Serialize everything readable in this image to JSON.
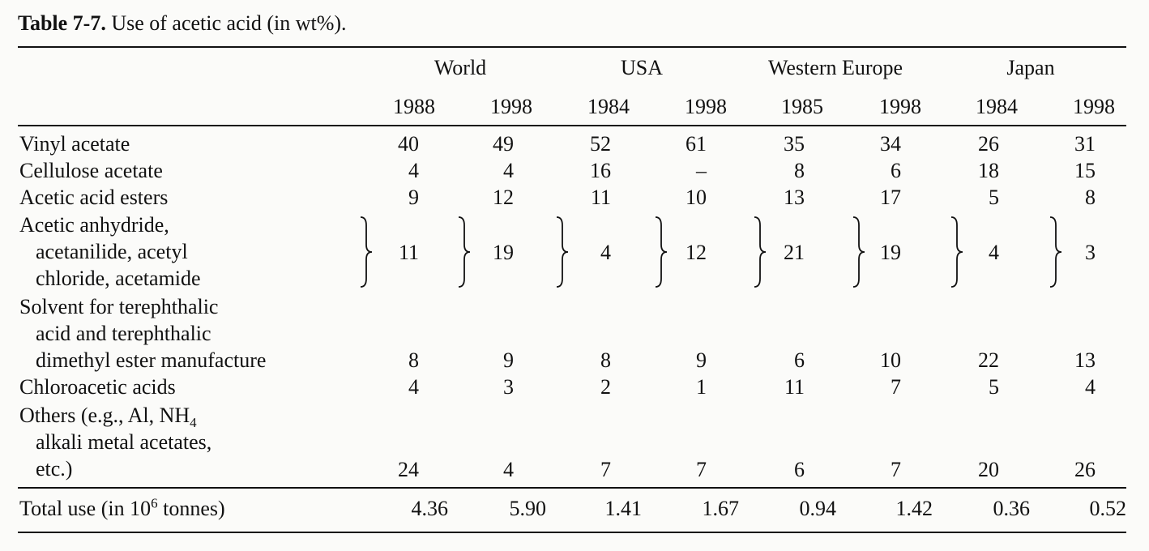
{
  "caption": {
    "label": "Table 7-7.",
    "text": " Use of acetic acid (in wt%)."
  },
  "groups": [
    "World",
    "USA",
    "Western Europe",
    "Japan"
  ],
  "years": [
    "1988",
    "1998",
    "1984",
    "1998",
    "1985",
    "1998",
    "1984",
    "1998"
  ],
  "rows": [
    {
      "lines": [
        "Vinyl acetate"
      ],
      "values": [
        "40",
        "49",
        "52",
        "61",
        "35",
        "34",
        "26",
        "31"
      ]
    },
    {
      "lines": [
        "Cellulose acetate"
      ],
      "values": [
        "4",
        "4",
        "16",
        "–",
        "8",
        "6",
        "18",
        "15"
      ]
    },
    {
      "lines": [
        "Acetic acid esters"
      ],
      "values": [
        "9",
        "12",
        "11",
        "10",
        "13",
        "17",
        "5",
        "8"
      ]
    },
    {
      "lines": [
        "Acetic anhydride,",
        "acetanilide, acetyl",
        "chloride, acetamide"
      ],
      "values": [
        "11",
        "19",
        "4",
        "12",
        "21",
        "19",
        "4",
        "3"
      ]
    },
    {
      "lines": [
        "Solvent for terephthalic",
        "acid and terephthalic",
        "dimethyl ester manufacture"
      ],
      "values": [
        "8",
        "9",
        "8",
        "9",
        "6",
        "10",
        "22",
        "13"
      ]
    },
    {
      "lines": [
        "Chloroacetic acids"
      ],
      "values": [
        "4",
        "3",
        "2",
        "1",
        "11",
        "7",
        "5",
        "4"
      ]
    },
    {
      "lines": [
        "Others (e.g., Al, NH",
        "alkali metal acetates,",
        "etc.)"
      ],
      "sub": "4",
      "values": [
        "24",
        "4",
        "7",
        "7",
        "6",
        "7",
        "20",
        "26"
      ]
    }
  ],
  "total": {
    "label": "Total use (in 10",
    "sup": "6",
    "label_end": " tonnes)",
    "values": [
      "4.36",
      "5.90",
      "1.41",
      "1.67",
      "0.94",
      "1.42",
      "0.36",
      "0.52"
    ]
  }
}
